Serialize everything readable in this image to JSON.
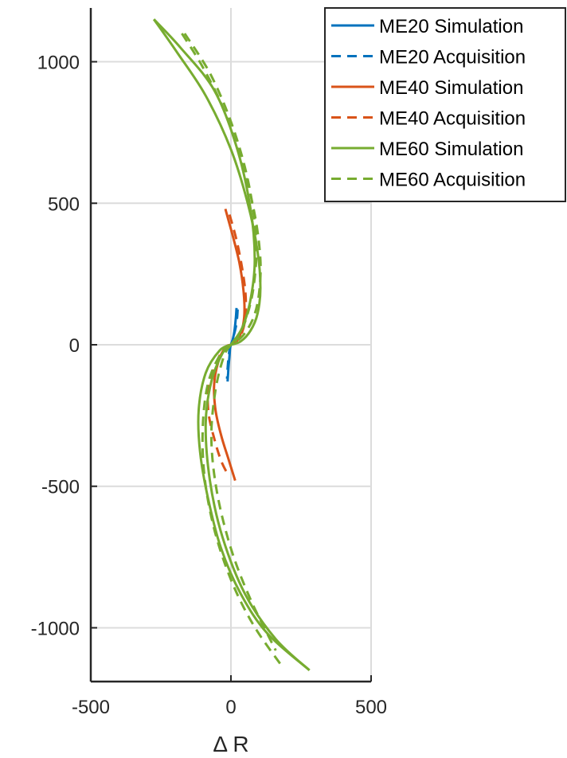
{
  "chart_data": {
    "type": "line",
    "title": "",
    "xlabel": "Δ R",
    "ylabel": "",
    "xlim": [
      -500,
      500
    ],
    "ylim": [
      -1190,
      1190
    ],
    "xticks": [
      -500,
      0,
      500
    ],
    "xtick_labels": [
      "-500",
      "0",
      "500"
    ],
    "yticks": [
      -1000,
      -500,
      0,
      500,
      1000
    ],
    "ytick_labels": [
      "-1000",
      "-500",
      "0",
      "500",
      "1000"
    ],
    "grid": true,
    "legend_position": "top-right",
    "series": [
      {
        "name": "ME20 Simulation",
        "color": "#0072BD",
        "dash": "solid",
        "paths": [
          {
            "x": [
              20,
              18,
              15,
              12,
              8,
              4,
              0
            ],
            "y": [
              130,
              100,
              70,
              45,
              25,
              10,
              0
            ]
          },
          {
            "x": [
              0,
              -3,
              -5,
              -8,
              -10,
              -12
            ],
            "y": [
              0,
              -10,
              -40,
              -70,
              -100,
              -130
            ]
          }
        ]
      },
      {
        "name": "ME20 Acquisition",
        "color": "#0072BD",
        "dash": "dashed",
        "paths": [
          {
            "x": [
              24,
              22,
              18,
              12,
              6,
              0
            ],
            "y": [
              125,
              95,
              65,
              40,
              18,
              0
            ]
          },
          {
            "x": [
              0,
              -5,
              -9,
              -12,
              -14
            ],
            "y": [
              0,
              -18,
              -50,
              -85,
              -120
            ]
          }
        ]
      },
      {
        "name": "ME40 Simulation",
        "color": "#D95319",
        "dash": "solid",
        "paths": [
          {
            "x": [
              -20,
              5,
              30,
              45,
              48,
              40,
              25,
              10,
              0
            ],
            "y": [
              480,
              390,
              290,
              190,
              110,
              55,
              20,
              5,
              0
            ]
          },
          {
            "x": [
              0,
              -20,
              -45,
              -60,
              -55,
              -35,
              -10,
              15
            ],
            "y": [
              0,
              -10,
              -60,
              -140,
              -230,
              -320,
              -400,
              -480
            ]
          }
        ]
      },
      {
        "name": "ME40 Acquisition",
        "color": "#D95319",
        "dash": "dashed",
        "paths": [
          {
            "x": [
              -5,
              20,
              40,
              52,
              52,
              40,
              20,
              0
            ],
            "y": [
              460,
              370,
              270,
              180,
              100,
              45,
              12,
              0
            ]
          },
          {
            "x": [
              0,
              -25,
              -55,
              -80,
              -80,
              -60,
              -35,
              -10
            ],
            "y": [
              0,
              -12,
              -70,
              -150,
              -240,
              -330,
              -410,
              -460
            ]
          }
        ]
      },
      {
        "name": "ME60 Simulation",
        "color": "#77AC30",
        "dash": "solid",
        "paths": [
          {
            "x": [
              -275,
              -190,
              -90,
              0,
              60,
              95,
              105,
              95,
              70,
              35,
              0
            ],
            "y": [
              1150,
              1030,
              880,
              690,
              500,
              330,
              200,
              110,
              50,
              12,
              0
            ]
          },
          {
            "x": [
              -275,
              -180,
              -60,
              20,
              70,
              85,
              70,
              40,
              0
            ],
            "y": [
              1150,
              1050,
              900,
              700,
              480,
              300,
              160,
              60,
              0
            ]
          },
          {
            "x": [
              0,
              -40,
              -90,
              -115,
              -110,
              -80,
              -35,
              35,
              130,
              280
            ],
            "y": [
              0,
              -20,
              -100,
              -230,
              -380,
              -550,
              -720,
              -880,
              -1020,
              -1150
            ]
          },
          {
            "x": [
              0,
              -30,
              -70,
              -90,
              -75,
              -30,
              50,
              160,
              280
            ],
            "y": [
              0,
              -30,
              -130,
              -280,
              -480,
              -680,
              -880,
              -1040,
              -1150
            ]
          }
        ]
      },
      {
        "name": "ME60 Acquisition",
        "color": "#77AC30",
        "dash": "dashed",
        "paths": [
          {
            "x": [
              -175,
              -100,
              -25,
              40,
              85,
              105,
              100,
              80,
              45,
              10,
              0
            ],
            "y": [
              1100,
              980,
              830,
              640,
              460,
              300,
              180,
              95,
              35,
              5,
              0
            ]
          },
          {
            "x": [
              -165,
              -70,
              10,
              65,
              90,
              80,
              50,
              15
            ],
            "y": [
              1100,
              950,
              760,
              560,
              360,
              200,
              80,
              10
            ]
          },
          {
            "x": [
              0,
              -35,
              -80,
              -100,
              -95,
              -60,
              0,
              80,
              185
            ],
            "y": [
              0,
              -30,
              -130,
              -280,
              -460,
              -650,
              -830,
              -990,
              -1140
            ]
          },
          {
            "x": [
              0,
              -25,
              -55,
              -70,
              -50,
              0,
              70,
              160
            ],
            "y": [
              0,
              -40,
              -160,
              -330,
              -520,
              -720,
              -900,
              -1080
            ]
          }
        ]
      }
    ]
  }
}
